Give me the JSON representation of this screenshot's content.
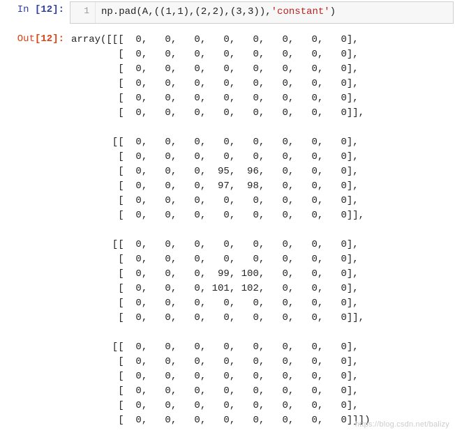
{
  "input": {
    "prompt_label": "In ",
    "prompt_number": "[12]:",
    "gutter_line": "1",
    "code_plain_prefix": "np.pad(A,((1,1),(2,2),(3,3)),",
    "code_string": "'constant'",
    "code_plain_suffix": ")"
  },
  "output": {
    "prompt_label": "Out",
    "prompt_number": "[12]:",
    "text": "array([[[  0,   0,   0,   0,   0,   0,   0,   0],\n        [  0,   0,   0,   0,   0,   0,   0,   0],\n        [  0,   0,   0,   0,   0,   0,   0,   0],\n        [  0,   0,   0,   0,   0,   0,   0,   0],\n        [  0,   0,   0,   0,   0,   0,   0,   0],\n        [  0,   0,   0,   0,   0,   0,   0,   0]],\n\n       [[  0,   0,   0,   0,   0,   0,   0,   0],\n        [  0,   0,   0,   0,   0,   0,   0,   0],\n        [  0,   0,   0,  95,  96,   0,   0,   0],\n        [  0,   0,   0,  97,  98,   0,   0,   0],\n        [  0,   0,   0,   0,   0,   0,   0,   0],\n        [  0,   0,   0,   0,   0,   0,   0,   0]],\n\n       [[  0,   0,   0,   0,   0,   0,   0,   0],\n        [  0,   0,   0,   0,   0,   0,   0,   0],\n        [  0,   0,   0,  99, 100,   0,   0,   0],\n        [  0,   0,   0, 101, 102,   0,   0,   0],\n        [  0,   0,   0,   0,   0,   0,   0,   0],\n        [  0,   0,   0,   0,   0,   0,   0,   0]],\n\n       [[  0,   0,   0,   0,   0,   0,   0,   0],\n        [  0,   0,   0,   0,   0,   0,   0,   0],\n        [  0,   0,   0,   0,   0,   0,   0,   0],\n        [  0,   0,   0,   0,   0,   0,   0,   0],\n        [  0,   0,   0,   0,   0,   0,   0,   0],\n        [  0,   0,   0,   0,   0,   0,   0,   0]]])"
  },
  "watermark": "https://blog.csdn.net/balizy"
}
